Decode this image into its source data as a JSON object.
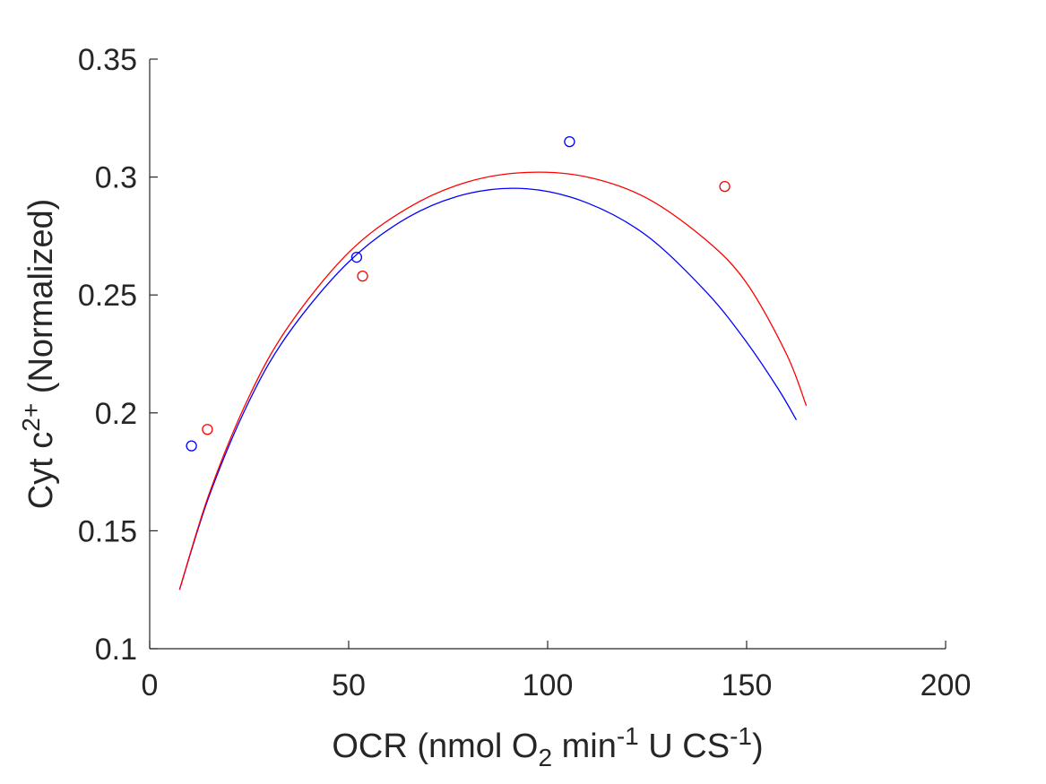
{
  "chart_data": {
    "type": "scatter",
    "xlabel": {
      "parts": [
        {
          "text": "OCR (nmol O",
          "role": "base"
        },
        {
          "text": "2",
          "role": "sub"
        },
        {
          "text": " min",
          "role": "base"
        },
        {
          "text": "-1",
          "role": "sup"
        },
        {
          "text": " U CS",
          "role": "base"
        },
        {
          "text": "-1",
          "role": "sup"
        },
        {
          "text": ")",
          "role": "base"
        }
      ]
    },
    "ylabel": {
      "parts": [
        {
          "text": "Cyt c",
          "role": "base"
        },
        {
          "text": "2+",
          "role": "sup"
        },
        {
          "text": " (Normalized)",
          "role": "base"
        }
      ]
    },
    "xlim": [
      0,
      200
    ],
    "ylim": [
      0.1,
      0.35
    ],
    "xticks": [
      {
        "value": 0,
        "label": "0"
      },
      {
        "value": 50,
        "label": "50"
      },
      {
        "value": 100,
        "label": "100"
      },
      {
        "value": 150,
        "label": "150"
      },
      {
        "value": 200,
        "label": "200"
      }
    ],
    "yticks": [
      {
        "value": 0.1,
        "label": "0.1"
      },
      {
        "value": 0.15,
        "label": "0.15"
      },
      {
        "value": 0.2,
        "label": "0.2"
      },
      {
        "value": 0.25,
        "label": "0.25"
      },
      {
        "value": 0.3,
        "label": "0.3"
      },
      {
        "value": 0.35,
        "label": "0.35"
      }
    ],
    "grid": false,
    "series": [
      {
        "color": "#0000ff",
        "points": [
          [
            10.5,
            0.186
          ],
          [
            52,
            0.266
          ],
          [
            105.5,
            0.315
          ]
        ],
        "fit": [
          [
            7.5,
            0.125
          ],
          [
            15,
            0.165
          ],
          [
            25,
            0.205
          ],
          [
            35,
            0.234
          ],
          [
            50,
            0.264
          ],
          [
            65,
            0.283
          ],
          [
            80,
            0.293
          ],
          [
            95,
            0.295
          ],
          [
            110,
            0.289
          ],
          [
            125,
            0.275
          ],
          [
            140,
            0.251
          ],
          [
            150,
            0.23
          ],
          [
            158,
            0.21
          ],
          [
            162.5,
            0.197
          ]
        ]
      },
      {
        "color": "#ff0000",
        "points": [
          [
            14.5,
            0.193
          ],
          [
            53.5,
            0.258
          ],
          [
            144.5,
            0.296
          ]
        ],
        "fit": [
          [
            7.5,
            0.125
          ],
          [
            15,
            0.166
          ],
          [
            25,
            0.207
          ],
          [
            35,
            0.237
          ],
          [
            50,
            0.268
          ],
          [
            65,
            0.287
          ],
          [
            80,
            0.298
          ],
          [
            95,
            0.302
          ],
          [
            110,
            0.3
          ],
          [
            125,
            0.291
          ],
          [
            140,
            0.273
          ],
          [
            150,
            0.255
          ],
          [
            160,
            0.225
          ],
          [
            165,
            0.203
          ]
        ]
      }
    ]
  }
}
